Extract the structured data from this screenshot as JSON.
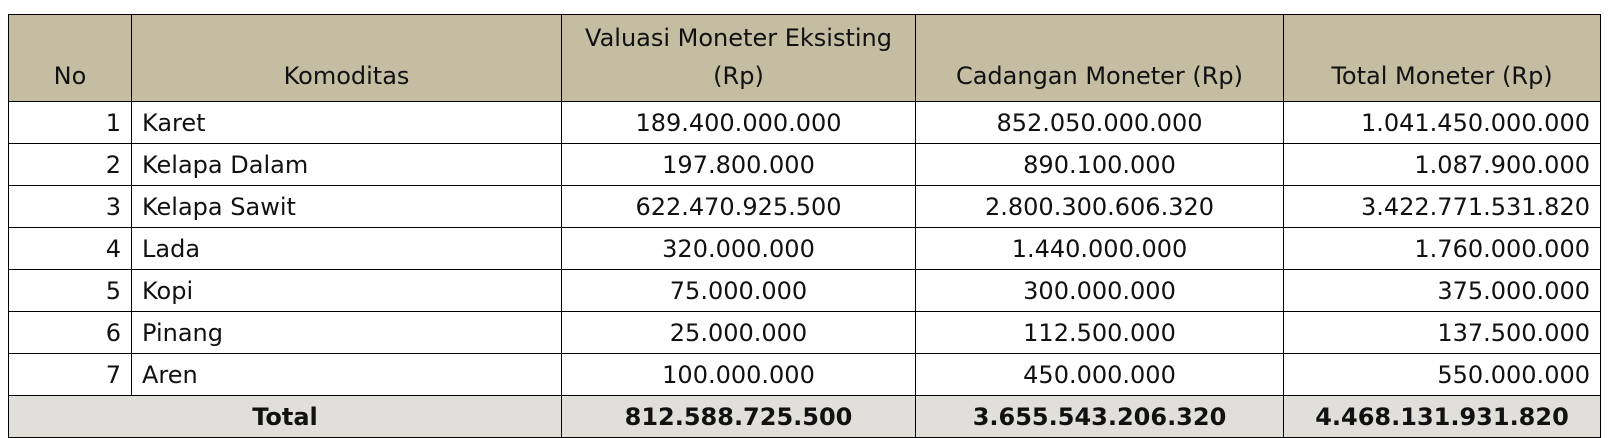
{
  "table": {
    "header": [
      "No",
      "Komoditas",
      "Valuasi Moneter Eksisting (Rp)",
      "Cadangan Moneter (Rp)",
      "Total Moneter (Rp)"
    ],
    "rows": [
      [
        1,
        "Karet",
        "189.400.000.000",
        "852.050.000.000",
        "1.041.450.000.000"
      ],
      [
        2,
        "Kelapa Dalam",
        "197.800.000",
        "890.100.000",
        "1.087.900.000"
      ],
      [
        3,
        "Kelapa Sawit",
        "622.470.925.500",
        "2.800.300.606.320",
        "3.422.771.531.820"
      ],
      [
        4,
        "Lada",
        "320.000.000",
        "1.440.000.000",
        "1.760.000.000"
      ],
      [
        5,
        "Kopi",
        "75.000.000",
        "300.000.000",
        "375.000.000"
      ],
      [
        6,
        "Pinang",
        "25.000.000",
        "112.500.000",
        "137.500.000"
      ],
      [
        7,
        "Aren",
        "100.000.000",
        "450.000.000",
        "550.000.000"
      ]
    ],
    "total": [
      "Total",
      "812.588.725.500",
      "3.655.543.206.320",
      "4.468.131.931.820"
    ]
  }
}
